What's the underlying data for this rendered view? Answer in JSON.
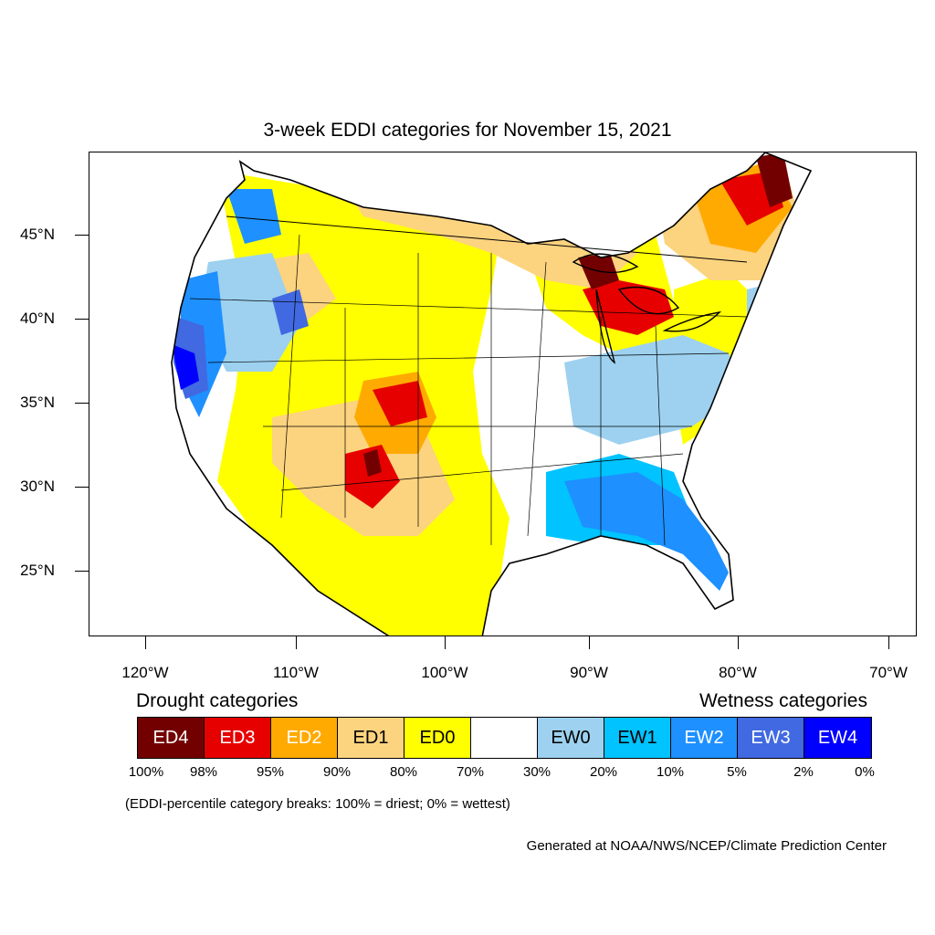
{
  "title": "3-week EDDI categories for November 15, 2021",
  "axes": {
    "lat_labels": [
      "45°N",
      "40°N",
      "35°N",
      "30°N",
      "25°N"
    ],
    "lon_labels": [
      "120°W",
      "110°W",
      "100°W",
      "90°W",
      "80°W",
      "70°W"
    ]
  },
  "legend": {
    "drought_heading": "Drought categories",
    "wetness_heading": "Wetness categories",
    "categories": [
      {
        "label": "ED4",
        "color": "#730000",
        "text_color": "#ffffff"
      },
      {
        "label": "ED3",
        "color": "#e60000",
        "text_color": "#ffffff"
      },
      {
        "label": "ED2",
        "color": "#ffaa00",
        "text_color": "#ffffff"
      },
      {
        "label": "ED1",
        "color": "#fcd37f",
        "text_color": "#000000"
      },
      {
        "label": "ED0",
        "color": "#ffff00",
        "text_color": "#000000"
      },
      {
        "label": "",
        "color": "#ffffff",
        "text_color": "#000000"
      },
      {
        "label": "EW0",
        "color": "#9dd1ef",
        "text_color": "#000000"
      },
      {
        "label": "EW1",
        "color": "#00c3ff",
        "text_color": "#000000"
      },
      {
        "label": "EW2",
        "color": "#1e90ff",
        "text_color": "#ffffff"
      },
      {
        "label": "EW3",
        "color": "#4169e1",
        "text_color": "#ffffff"
      },
      {
        "label": "EW4",
        "color": "#0000ff",
        "text_color": "#ffffff"
      }
    ],
    "breaks": [
      "100%",
      "98%",
      "95%",
      "90%",
      "80%",
      "70%",
      "30%",
      "20%",
      "10%",
      "5%",
      "2%",
      "0%"
    ]
  },
  "note": "(EDDI-percentile category breaks: 100% = driest; 0% = wettest)",
  "credit": "Generated at NOAA/NWS/NCEP/Climate Prediction Center"
}
